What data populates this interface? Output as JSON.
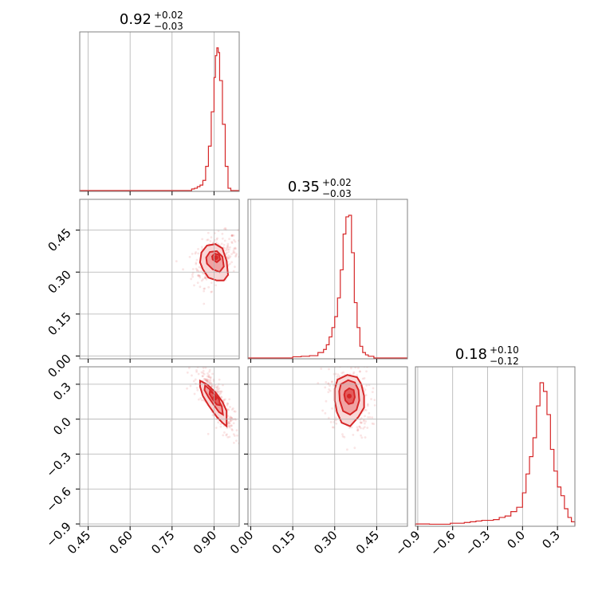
{
  "chart_data": {
    "type": "corner",
    "parameters": [
      {
        "median": "0.92",
        "plus": "+0.02",
        "minus": "−0.03",
        "range": [
          0.42,
          0.99
        ],
        "ticks": [
          0.45,
          0.6,
          0.75,
          0.9
        ],
        "tick_labels": [
          "0.45",
          "0.60",
          "0.75",
          "0.90"
        ],
        "hist_bins": [
          0.82,
          0.83,
          0.84,
          0.85,
          0.86,
          0.87,
          0.88,
          0.89,
          0.9,
          0.905,
          0.91,
          0.915,
          0.92,
          0.93,
          0.94,
          0.95,
          0.96
        ],
        "hist_counts": [
          0.5,
          1,
          2,
          3,
          6,
          15,
          28,
          50,
          72,
          86,
          91,
          88,
          70,
          42,
          15,
          1
        ]
      },
      {
        "median": "0.35",
        "plus": "+0.02",
        "minus": "−0.03",
        "range": [
          -0.01,
          0.56
        ],
        "ticks": [
          0.0,
          0.15,
          0.3,
          0.45
        ],
        "tick_labels": [
          "0.00",
          "0.15",
          "0.30",
          "0.45"
        ],
        "hist_bins": [
          0.15,
          0.18,
          0.21,
          0.24,
          0.26,
          0.27,
          0.28,
          0.29,
          0.3,
          0.31,
          0.32,
          0.33,
          0.34,
          0.35,
          0.36,
          0.37,
          0.38,
          0.39,
          0.4,
          0.41,
          0.42,
          0.44
        ],
        "hist_counts": [
          0.3,
          0.6,
          1,
          3,
          5,
          8,
          13,
          19,
          26,
          38,
          56,
          79,
          90,
          91,
          67,
          35,
          19,
          7,
          3,
          1.5,
          0.6
        ]
      },
      {
        "median": "0.18",
        "plus": "+0.10",
        "minus": "−0.12",
        "range": [
          -0.92,
          0.45
        ],
        "ticks": [
          -0.9,
          -0.6,
          -0.3,
          0.0,
          0.3
        ],
        "tick_labels": [
          "−0.9",
          "−0.6",
          "−0.3",
          "0.0",
          "0.3"
        ],
        "hist_bins": [
          -0.92,
          -0.8,
          -0.62,
          -0.55,
          -0.5,
          -0.45,
          -0.4,
          -0.35,
          -0.3,
          -0.25,
          -0.2,
          -0.15,
          -0.1,
          -0.05,
          0.0,
          0.03,
          0.06,
          0.09,
          0.12,
          0.15,
          0.18,
          0.21,
          0.24,
          0.27,
          0.3,
          0.33,
          0.36,
          0.39,
          0.42,
          0.45
        ],
        "hist_counts": [
          0.5,
          0.3,
          1,
          1,
          1.5,
          2,
          2.5,
          3,
          3,
          3.5,
          5,
          6,
          9,
          12,
          22,
          35,
          47,
          60,
          82,
          98,
          92,
          76,
          52,
          37,
          26,
          20,
          11,
          5,
          2
        ]
      }
    ],
    "contours": {
      "1_0": [
        [
          [
            0.86,
            0.31
          ],
          [
            0.88,
            0.28
          ],
          [
            0.91,
            0.27
          ],
          [
            0.935,
            0.27
          ],
          [
            0.95,
            0.29
          ],
          [
            0.945,
            0.34
          ],
          [
            0.93,
            0.385
          ],
          [
            0.905,
            0.4
          ],
          [
            0.875,
            0.395
          ],
          [
            0.855,
            0.37
          ],
          [
            0.85,
            0.335
          ]
        ],
        [
          [
            0.875,
            0.33
          ],
          [
            0.895,
            0.31
          ],
          [
            0.92,
            0.3
          ],
          [
            0.935,
            0.32
          ],
          [
            0.93,
            0.355
          ],
          [
            0.91,
            0.375
          ],
          [
            0.885,
            0.372
          ],
          [
            0.872,
            0.352
          ]
        ],
        [
          [
            0.895,
            0.345
          ],
          [
            0.91,
            0.335
          ],
          [
            0.922,
            0.345
          ],
          [
            0.918,
            0.362
          ],
          [
            0.902,
            0.366
          ],
          [
            0.893,
            0.356
          ]
        ]
      ],
      "2_0": [
        [
          [
            0.85,
            0.33
          ],
          [
            0.875,
            0.3
          ],
          [
            0.905,
            0.23
          ],
          [
            0.93,
            0.15
          ],
          [
            0.945,
            0.07
          ],
          [
            0.945,
            -0.06
          ],
          [
            0.93,
            -0.03
          ],
          [
            0.91,
            0.02
          ],
          [
            0.88,
            0.12
          ],
          [
            0.86,
            0.2
          ],
          [
            0.85,
            0.28
          ]
        ],
        [
          [
            0.868,
            0.29
          ],
          [
            0.888,
            0.25
          ],
          [
            0.91,
            0.19
          ],
          [
            0.928,
            0.11
          ],
          [
            0.932,
            0.04
          ],
          [
            0.918,
            0.06
          ],
          [
            0.9,
            0.12
          ],
          [
            0.88,
            0.19
          ],
          [
            0.866,
            0.25
          ]
        ],
        [
          [
            0.885,
            0.24
          ],
          [
            0.902,
            0.215
          ],
          [
            0.918,
            0.17
          ],
          [
            0.922,
            0.12
          ],
          [
            0.91,
            0.125
          ],
          [
            0.895,
            0.17
          ],
          [
            0.884,
            0.215
          ]
        ]
      ],
      "2_1": [
        [
          [
            0.31,
            0.34
          ],
          [
            0.345,
            0.38
          ],
          [
            0.38,
            0.36
          ],
          [
            0.395,
            0.3
          ],
          [
            0.405,
            0.2
          ],
          [
            0.405,
            0.1
          ],
          [
            0.385,
            0.02
          ],
          [
            0.355,
            -0.06
          ],
          [
            0.325,
            -0.03
          ],
          [
            0.308,
            0.06
          ],
          [
            0.3,
            0.16
          ],
          [
            0.3,
            0.26
          ]
        ],
        [
          [
            0.322,
            0.3
          ],
          [
            0.348,
            0.335
          ],
          [
            0.372,
            0.315
          ],
          [
            0.385,
            0.25
          ],
          [
            0.388,
            0.16
          ],
          [
            0.378,
            0.08
          ],
          [
            0.355,
            0.04
          ],
          [
            0.33,
            0.07
          ],
          [
            0.318,
            0.16
          ],
          [
            0.316,
            0.24
          ]
        ],
        [
          [
            0.337,
            0.24
          ],
          [
            0.352,
            0.265
          ],
          [
            0.368,
            0.25
          ],
          [
            0.372,
            0.19
          ],
          [
            0.365,
            0.14
          ],
          [
            0.35,
            0.13
          ],
          [
            0.338,
            0.16
          ],
          [
            0.334,
            0.21
          ]
        ]
      ]
    }
  }
}
